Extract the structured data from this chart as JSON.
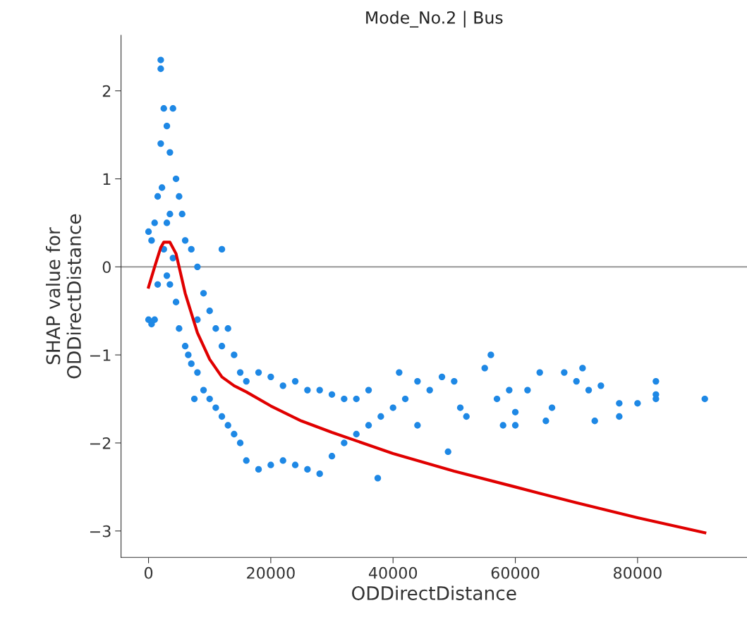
{
  "chart_data": {
    "type": "scatter",
    "title": "Mode_No.2 | Bus",
    "xlabel": "ODDirectDistance",
    "ylabel": "SHAP value for\nODDirectDistance",
    "xlim": [
      -4500,
      97900
    ],
    "ylim": [
      -3.3,
      2.63
    ],
    "xticks": [
      0,
      20000,
      40000,
      60000,
      80000
    ],
    "yticks": [
      {
        "value": -3,
        "label": "−3"
      },
      {
        "value": -2,
        "label": "−2"
      },
      {
        "value": -1,
        "label": "−1"
      },
      0,
      1,
      2
    ],
    "grid": false,
    "marker": "circle",
    "ref_lines": [
      {
        "axis": "y",
        "value": 0,
        "color": "#888888"
      }
    ],
    "series": [
      {
        "color": "#1e88e5",
        "x": [
          0,
          0,
          500,
          500,
          1000,
          1000,
          1500,
          1500,
          2000,
          2000,
          2000,
          2200,
          2500,
          2500,
          3000,
          3000,
          3000,
          3500,
          3500,
          3500,
          4000,
          4000,
          4500,
          4500,
          5000,
          5000,
          5500,
          6000,
          6000,
          6500,
          7000,
          7000,
          7500,
          8000,
          8000,
          8000,
          9000,
          9000,
          10000,
          10000,
          11000,
          11000,
          12000,
          12000,
          12000,
          13000,
          13000,
          14000,
          14000,
          15000,
          15000,
          16000,
          16000,
          18000,
          18000,
          20000,
          20000,
          22000,
          22000,
          24000,
          24000,
          26000,
          26000,
          28000,
          28000,
          30000,
          30000,
          32000,
          32000,
          34000,
          34000,
          36000,
          36000,
          37500,
          38000,
          40000,
          41000,
          42000,
          44000,
          44000,
          46000,
          48000,
          49000,
          50000,
          51000,
          52000,
          55000,
          56000,
          57000,
          58000,
          59000,
          60000,
          60000,
          62000,
          64000,
          65000,
          66000,
          68000,
          70000,
          71000,
          72000,
          73000,
          74000,
          77000,
          77000,
          80000,
          83000,
          83000,
          83000,
          91000
        ],
        "values": [
          0.4,
          -0.6,
          -0.65,
          0.3,
          -0.6,
          0.5,
          0.8,
          -0.2,
          2.35,
          2.25,
          1.4,
          0.9,
          1.8,
          0.2,
          1.6,
          0.5,
          -0.1,
          1.3,
          0.6,
          -0.2,
          1.8,
          0.1,
          1.0,
          -0.4,
          0.8,
          -0.7,
          0.6,
          0.3,
          -0.9,
          -1.0,
          0.2,
          -1.1,
          -1.5,
          0.0,
          -0.6,
          -1.2,
          -0.3,
          -1.4,
          -0.5,
          -1.5,
          -0.7,
          -1.6,
          0.2,
          -0.9,
          -1.7,
          -0.7,
          -1.8,
          -1.0,
          -1.9,
          -1.2,
          -2.0,
          -1.3,
          -2.2,
          -1.2,
          -2.3,
          -1.25,
          -2.25,
          -1.35,
          -2.2,
          -1.3,
          -2.25,
          -1.4,
          -2.3,
          -1.4,
          -2.35,
          -1.45,
          -2.15,
          -1.5,
          -2.0,
          -1.5,
          -1.9,
          -1.4,
          -1.8,
          -2.4,
          -1.7,
          -1.6,
          -1.2,
          -1.5,
          -1.3,
          -1.8,
          -1.4,
          -1.25,
          -2.1,
          -1.3,
          -1.6,
          -1.7,
          -1.15,
          -1.0,
          -1.5,
          -1.8,
          -1.4,
          -1.65,
          -1.8,
          -1.4,
          -1.2,
          -1.75,
          -1.6,
          -1.2,
          -1.3,
          -1.15,
          -1.4,
          -1.75,
          -1.35,
          -1.55,
          -1.7,
          -1.55,
          -1.3,
          -1.45,
          -1.5,
          -1.5
        ]
      },
      {
        "type": "line",
        "color": "#e00000",
        "marker": "none",
        "line_style": "solid",
        "x": [
          0,
          1000,
          2000,
          2500,
          3500,
          4500,
          6000,
          8000,
          10000,
          12000,
          14000,
          16000,
          20000,
          25000,
          30000,
          35000,
          40000,
          50000,
          60000,
          70000,
          80000,
          91000
        ],
        "values": [
          -0.23,
          0.0,
          0.22,
          0.28,
          0.28,
          0.15,
          -0.3,
          -0.75,
          -1.05,
          -1.25,
          -1.35,
          -1.42,
          -1.58,
          -1.75,
          -1.88,
          -2.0,
          -2.12,
          -2.32,
          -2.5,
          -2.68,
          -2.85,
          -3.02
        ]
      }
    ]
  }
}
